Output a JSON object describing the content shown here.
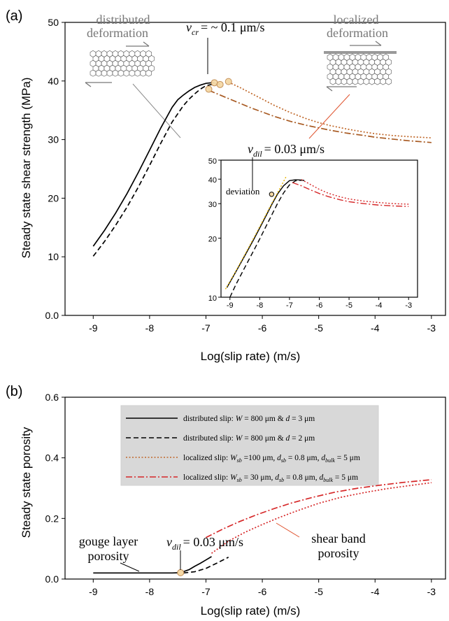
{
  "chart_data": [
    {
      "panel": "(a)",
      "type": "line",
      "xlabel": "Log(slip rate) (m/s)",
      "ylabel": "Steady state shear strength (MPa)",
      "xlim": [
        -9.5,
        -2.75
      ],
      "ylim": [
        0,
        50
      ],
      "xticks": [
        "-9",
        "-8",
        "-7",
        "-6",
        "-5",
        "-4",
        "-3"
      ],
      "yticks": [
        "0.0",
        "10",
        "20",
        "30",
        "40",
        "50"
      ],
      "series": [
        {
          "name": "distributed slip: W = 800 μm & d = 3 μm",
          "color": "#000000",
          "dash": "solid",
          "x": [
            -9,
            -8.8,
            -8.6,
            -8.4,
            -8.2,
            -8,
            -7.8,
            -7.6,
            -7.5,
            -7.4,
            -7.3,
            -7.2,
            -7.1,
            -7.0,
            -6.9,
            -6.85
          ],
          "y": [
            11.8,
            14.5,
            17.5,
            20.8,
            24.4,
            28.2,
            32.0,
            35.5,
            36.8,
            37.6,
            38.3,
            38.9,
            39.3,
            39.6,
            39.7,
            39.7
          ]
        },
        {
          "name": "distributed slip: W = 800 μm & d = 2 μm",
          "color": "#000000",
          "dash": "dashed",
          "x": [
            -9,
            -8.8,
            -8.6,
            -8.4,
            -8.2,
            -8,
            -7.8,
            -7.6,
            -7.4,
            -7.3,
            -7.2,
            -7.1,
            -7.0,
            -6.9,
            -6.8,
            -6.75
          ],
          "y": [
            10.1,
            12.6,
            15.4,
            18.5,
            21.9,
            25.6,
            29.4,
            33.0,
            35.8,
            36.9,
            37.8,
            38.6,
            39.2,
            39.4,
            39.5,
            39.5
          ]
        },
        {
          "name": "localized slip: Wsb = 100 μm, dsb = 0.8 μm, dbulk = 5 μm",
          "color": "#c0682a",
          "dash": "dotted",
          "x": [
            -6.6,
            -6.4,
            -6.2,
            -6.0,
            -5.8,
            -5.5,
            -5.2,
            -5.0,
            -4.8,
            -4.5,
            -4.2,
            -4.0,
            -3.7,
            -3.4,
            -3.0
          ],
          "y": [
            39.8,
            38.9,
            37.9,
            36.9,
            35.9,
            34.6,
            33.5,
            32.9,
            32.4,
            31.8,
            31.3,
            31.0,
            30.7,
            30.5,
            30.3
          ]
        },
        {
          "name": "localized slip: Wsb = 30 μm, dsb = 0.8 μm, dbulk = 5 μm",
          "color": "#a85a22",
          "dash": "dashdot",
          "x": [
            -6.95,
            -6.8,
            -6.6,
            -6.4,
            -6.2,
            -6.0,
            -5.8,
            -5.5,
            -5.2,
            -5.0,
            -4.8,
            -4.5,
            -4.2,
            -4.0,
            -3.7,
            -3.4,
            -3.0
          ],
          "y": [
            38.4,
            37.8,
            37.0,
            36.2,
            35.4,
            34.7,
            34.0,
            33.1,
            32.4,
            32.0,
            31.6,
            31.1,
            30.7,
            30.4,
            30.1,
            29.8,
            29.5
          ]
        }
      ],
      "markers": [
        {
          "x": -6.95,
          "y": 38.6
        },
        {
          "x": -6.85,
          "y": 39.7
        },
        {
          "x": -6.75,
          "y": 39.4
        },
        {
          "x": -6.6,
          "y": 39.9
        }
      ],
      "annotations": {
        "vcr": {
          "v": "v",
          "sub": "cr",
          "text": "= ~ 0.1 μm/s"
        },
        "distributed": [
          "distributed",
          "deformation"
        ],
        "localized": [
          "localized",
          "deformation"
        ]
      },
      "inset": {
        "type": "line",
        "yscale": "log",
        "xlim": [
          -9.3,
          -2.7
        ],
        "ylim": [
          10,
          50
        ],
        "xticks": [
          "-9",
          "-8",
          "-7",
          "-6",
          "-5",
          "-4",
          "-3"
        ],
        "yticks": [
          "10",
          "20",
          "30",
          "40",
          "50"
        ],
        "vdil": {
          "v": "v",
          "sub": "dil",
          "text": "=  0.03 μm/s"
        },
        "deviation_label": "deviation",
        "deviation_point": {
          "x": -7.6,
          "y": 33.5
        },
        "series": [
          {
            "color": "#000000",
            "dash": "solid",
            "x": [
              -9.1,
              -8.8,
              -8.5,
              -8.2,
              -8.0,
              -7.8,
              -7.6,
              -7.4,
              -7.2,
              -7.0,
              -6.8,
              -6.6
            ],
            "y": [
              11.2,
              13.5,
              16.3,
              19.7,
              22.5,
              25.8,
              29.6,
              33.6,
              37.0,
              39.3,
              39.7,
              39.6
            ]
          },
          {
            "color": "#000000",
            "dash": "dashed",
            "x": [
              -9.0,
              -8.8,
              -8.5,
              -8.2,
              -8.0,
              -7.8,
              -7.6,
              -7.4,
              -7.2,
              -7.0,
              -6.8,
              -6.6,
              -6.5
            ],
            "y": [
              10.0,
              11.6,
              14.2,
              17.3,
              19.8,
              22.8,
              26.2,
              30.1,
              34.0,
              37.4,
              39.2,
              39.5,
              39.4
            ]
          },
          {
            "color": "#d62728",
            "dash": "dotted",
            "x": [
              -6.6,
              -6.3,
              -6.0,
              -5.7,
              -5.3,
              -5.0,
              -4.5,
              -4.0,
              -3.5,
              -3.0
            ],
            "y": [
              39.8,
              37.6,
              35.5,
              33.9,
              32.5,
              31.7,
              30.9,
              30.4,
              30.0,
              29.8
            ]
          },
          {
            "color": "#d62728",
            "dash": "dashdot",
            "x": [
              -6.9,
              -6.6,
              -6.3,
              -6.0,
              -5.7,
              -5.3,
              -5.0,
              -4.5,
              -4.0,
              -3.5,
              -3.0
            ],
            "y": [
              38.4,
              37.0,
              35.3,
              33.8,
              32.6,
              31.4,
              30.7,
              30.0,
              29.5,
              29.2,
              29.0
            ]
          },
          {
            "color": "#e8b400",
            "dash": "dotted",
            "x": [
              -9.15,
              -8.8,
              -8.4,
              -8.0,
              -7.6,
              -7.3,
              -7.1
            ],
            "y": [
              11.0,
              13.6,
              17.6,
              22.9,
              30.0,
              36.4,
              41.6
            ]
          }
        ]
      }
    },
    {
      "panel": "(b)",
      "type": "line",
      "xlabel": "Log(slip rate) (m/s)",
      "ylabel": "Steady state porosity",
      "xlim": [
        -9.5,
        -2.75
      ],
      "ylim": [
        0,
        0.6
      ],
      "xticks": [
        "-9",
        "-8",
        "-7",
        "-6",
        "-5",
        "-4",
        "-3"
      ],
      "yticks": [
        "0.0",
        "0.2",
        "0.4",
        "0.6"
      ],
      "legend_position": "top-center",
      "legend": [
        {
          "color": "#000000",
          "dash": "solid",
          "parts": [
            [
              "distributed slip: ",
              "n"
            ],
            [
              "W",
              "i"
            ],
            [
              " = 800 μm & ",
              "n"
            ],
            [
              "d",
              "i"
            ],
            [
              " = 3 μm",
              "n"
            ]
          ]
        },
        {
          "color": "#000000",
          "dash": "dashed",
          "parts": [
            [
              "distributed slip: ",
              "n"
            ],
            [
              "W",
              "i"
            ],
            [
              " = 800 μm & ",
              "n"
            ],
            [
              "d",
              "i"
            ],
            [
              " = 2 μm",
              "n"
            ]
          ]
        },
        {
          "color": "#c0682a",
          "dash": "dotted",
          "parts": [
            [
              "localized slip: ",
              "n"
            ],
            [
              "W",
              "i"
            ],
            [
              "sb",
              "s"
            ],
            [
              " =100 μm, ",
              "n"
            ],
            [
              "d",
              "i"
            ],
            [
              "sb",
              "s"
            ],
            [
              " = 0.8 μm, ",
              "n"
            ],
            [
              "d",
              "i"
            ],
            [
              "bulk",
              "s"
            ],
            [
              " = 5 μm",
              "n"
            ]
          ]
        },
        {
          "color": "#d62728",
          "dash": "dashdot",
          "parts": [
            [
              "localized slip: ",
              "n"
            ],
            [
              "W",
              "i"
            ],
            [
              "sb",
              "s"
            ],
            [
              " = 30 μm,  ",
              "n"
            ],
            [
              "d",
              "i"
            ],
            [
              "sb",
              "s"
            ],
            [
              " = 0.8 μm, ",
              "n"
            ],
            [
              "d",
              "i"
            ],
            [
              "bulk",
              "s"
            ],
            [
              " = 5 μm",
              "n"
            ]
          ]
        }
      ],
      "series": [
        {
          "name": "distributed slip: W = 800 μm & d = 3 μm",
          "color": "#000000",
          "dash": "solid",
          "x": [
            -9,
            -8.5,
            -8,
            -7.6,
            -7.45,
            -7.3,
            -7.2,
            -7.1,
            -7.0,
            -6.9
          ],
          "y": [
            0.02,
            0.02,
            0.02,
            0.02,
            0.021,
            0.031,
            0.042,
            0.052,
            0.063,
            0.074
          ]
        },
        {
          "name": "distributed slip: W = 800 μm & d = 2 μm",
          "color": "#000000",
          "dash": "dashed",
          "x": [
            -7.4,
            -7.2,
            -7.0,
            -6.8,
            -6.6
          ],
          "y": [
            0.02,
            0.024,
            0.035,
            0.053,
            0.072
          ]
        },
        {
          "name": "localized slip: Wsb = 100 μm, dsb = 0.8 μm, dbulk = 5 μm",
          "color": "#d62728",
          "dash": "dotted",
          "x": [
            -6.9,
            -6.6,
            -6.3,
            -6.0,
            -5.7,
            -5.4,
            -5.0,
            -4.6,
            -4.2,
            -3.8,
            -3.4,
            -3.0
          ],
          "y": [
            0.085,
            0.125,
            0.155,
            0.18,
            0.203,
            0.224,
            0.25,
            0.27,
            0.285,
            0.298,
            0.308,
            0.318
          ]
        },
        {
          "name": "localized slip: Wsb = 30 μm, dsb = 0.8 μm, dbulk = 5 μm",
          "color": "#d62728",
          "dash": "dashdot",
          "x": [
            -7.0,
            -6.7,
            -6.4,
            -6.1,
            -5.8,
            -5.5,
            -5.1,
            -4.7,
            -4.3,
            -3.9,
            -3.5,
            -3.0
          ],
          "y": [
            0.137,
            0.165,
            0.19,
            0.212,
            0.232,
            0.25,
            0.27,
            0.287,
            0.3,
            0.31,
            0.319,
            0.328
          ]
        }
      ],
      "markers": [
        {
          "x": -7.45,
          "y": 0.021
        }
      ],
      "annotations": {
        "vdil": {
          "v": "v",
          "sub": "dil",
          "text": "=  0.03 μm/s"
        },
        "gouge": [
          "gouge layer",
          "porosity"
        ],
        "shear": [
          "shear band",
          "porosity"
        ]
      }
    }
  ]
}
